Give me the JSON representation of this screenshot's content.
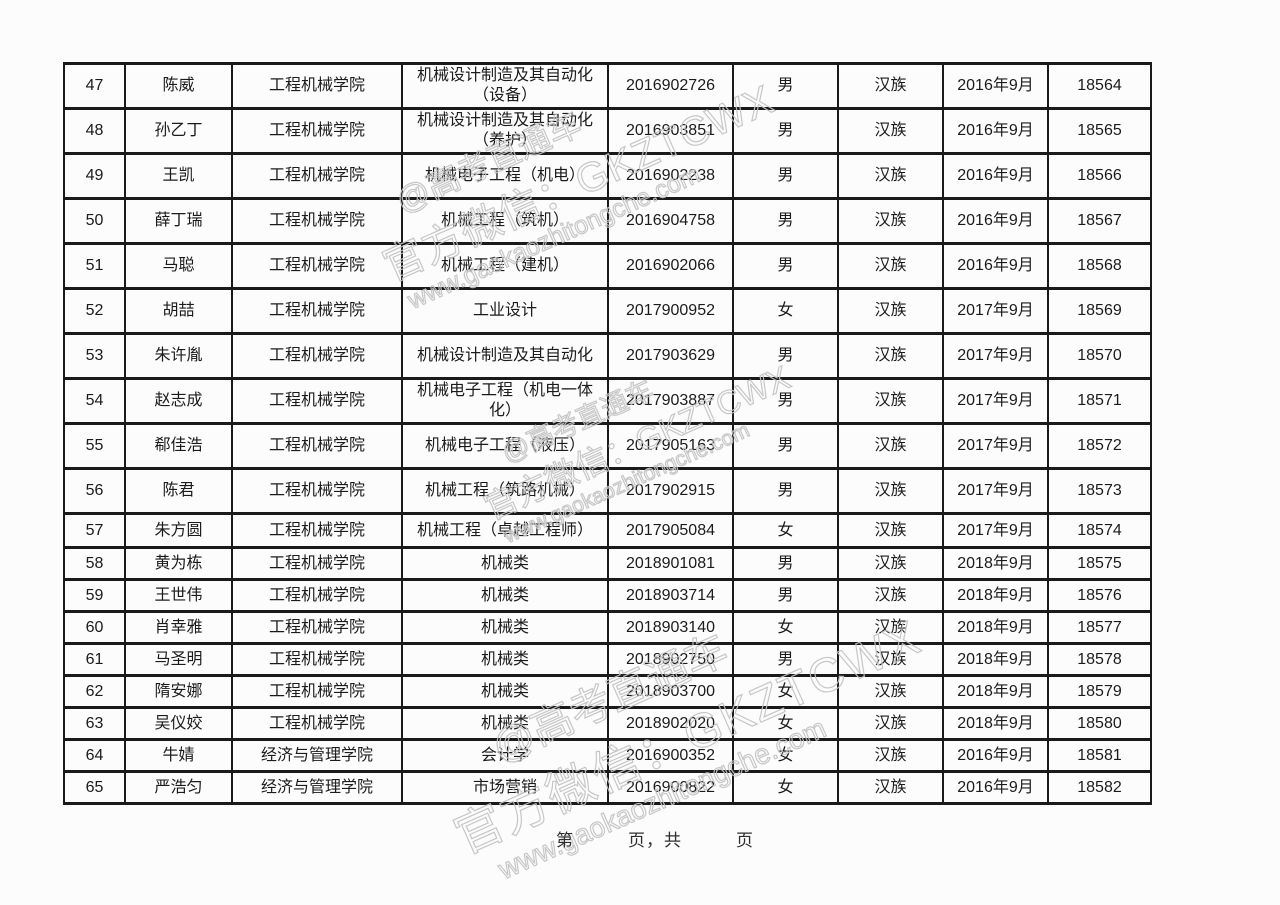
{
  "document": {
    "footer_text": "第　　　页，共　　　页",
    "watermark": {
      "line1": "@高考直通车",
      "line2": "官方微信：GKZTCWX",
      "line3": "www.gaokaozhitongche.com"
    }
  },
  "table": {
    "rows": [
      {
        "no": "47",
        "name": "陈威",
        "college": "工程机械学院",
        "major": "机械设计制造及其自动化（设备）",
        "student_id": "2016902726",
        "gender": "男",
        "ethnicity": "汉族",
        "enroll_date": "2016年9月",
        "serial": "18564"
      },
      {
        "no": "48",
        "name": "孙乙丁",
        "college": "工程机械学院",
        "major": "机械设计制造及其自动化（养护）",
        "student_id": "2016903851",
        "gender": "男",
        "ethnicity": "汉族",
        "enroll_date": "2016年9月",
        "serial": "18565"
      },
      {
        "no": "49",
        "name": "王凯",
        "college": "工程机械学院",
        "major": "机械电子工程（机电）",
        "student_id": "2016902238",
        "gender": "男",
        "ethnicity": "汉族",
        "enroll_date": "2016年9月",
        "serial": "18566"
      },
      {
        "no": "50",
        "name": "薛丁瑞",
        "college": "工程机械学院",
        "major": "机械工程（筑机）",
        "student_id": "2016904758",
        "gender": "男",
        "ethnicity": "汉族",
        "enroll_date": "2016年9月",
        "serial": "18567"
      },
      {
        "no": "51",
        "name": "马聪",
        "college": "工程机械学院",
        "major": "机械工程（建机）",
        "student_id": "2016902066",
        "gender": "男",
        "ethnicity": "汉族",
        "enroll_date": "2016年9月",
        "serial": "18568"
      },
      {
        "no": "52",
        "name": "胡喆",
        "college": "工程机械学院",
        "major": "工业设计",
        "student_id": "2017900952",
        "gender": "女",
        "ethnicity": "汉族",
        "enroll_date": "2017年9月",
        "serial": "18569"
      },
      {
        "no": "53",
        "name": "朱许胤",
        "college": "工程机械学院",
        "major": "机械设计制造及其自动化",
        "student_id": "2017903629",
        "gender": "男",
        "ethnicity": "汉族",
        "enroll_date": "2017年9月",
        "serial": "18570"
      },
      {
        "no": "54",
        "name": "赵志成",
        "college": "工程机械学院",
        "major": "机械电子工程（机电一体化）",
        "student_id": "2017903887",
        "gender": "男",
        "ethnicity": "汉族",
        "enroll_date": "2017年9月",
        "serial": "18571"
      },
      {
        "no": "55",
        "name": "郗佳浩",
        "college": "工程机械学院",
        "major": "机械电子工程（液压）",
        "student_id": "2017905163",
        "gender": "男",
        "ethnicity": "汉族",
        "enroll_date": "2017年9月",
        "serial": "18572"
      },
      {
        "no": "56",
        "name": "陈君",
        "college": "工程机械学院",
        "major": "机械工程（筑路机械）",
        "student_id": "2017902915",
        "gender": "男",
        "ethnicity": "汉族",
        "enroll_date": "2017年9月",
        "serial": "18573"
      },
      {
        "no": "57",
        "name": "朱方圆",
        "college": "工程机械学院",
        "major": "机械工程（卓越工程师）",
        "student_id": "2017905084",
        "gender": "女",
        "ethnicity": "汉族",
        "enroll_date": "2017年9月",
        "serial": "18574"
      },
      {
        "no": "58",
        "name": "黄为栋",
        "college": "工程机械学院",
        "major": "机械类",
        "student_id": "2018901081",
        "gender": "男",
        "ethnicity": "汉族",
        "enroll_date": "2018年9月",
        "serial": "18575"
      },
      {
        "no": "59",
        "name": "王世伟",
        "college": "工程机械学院",
        "major": "机械类",
        "student_id": "2018903714",
        "gender": "男",
        "ethnicity": "汉族",
        "enroll_date": "2018年9月",
        "serial": "18576"
      },
      {
        "no": "60",
        "name": "肖幸雅",
        "college": "工程机械学院",
        "major": "机械类",
        "student_id": "2018903140",
        "gender": "女",
        "ethnicity": "汉族",
        "enroll_date": "2018年9月",
        "serial": "18577"
      },
      {
        "no": "61",
        "name": "马圣明",
        "college": "工程机械学院",
        "major": "机械类",
        "student_id": "2018902750",
        "gender": "男",
        "ethnicity": "汉族",
        "enroll_date": "2018年9月",
        "serial": "18578"
      },
      {
        "no": "62",
        "name": "隋安娜",
        "college": "工程机械学院",
        "major": "机械类",
        "student_id": "2018903700",
        "gender": "女",
        "ethnicity": "汉族",
        "enroll_date": "2018年9月",
        "serial": "18579"
      },
      {
        "no": "63",
        "name": "吴仪姣",
        "college": "工程机械学院",
        "major": "机械类",
        "student_id": "2018902020",
        "gender": "女",
        "ethnicity": "汉族",
        "enroll_date": "2018年9月",
        "serial": "18580"
      },
      {
        "no": "64",
        "name": "牛婧",
        "college": "经济与管理学院",
        "major": "会计学",
        "student_id": "2016900352",
        "gender": "女",
        "ethnicity": "汉族",
        "enroll_date": "2016年9月",
        "serial": "18581"
      },
      {
        "no": "65",
        "name": "严浩匀",
        "college": "经济与管理学院",
        "major": "市场营销",
        "student_id": "2016900822",
        "gender": "女",
        "ethnicity": "汉族",
        "enroll_date": "2016年9月",
        "serial": "18582"
      }
    ]
  }
}
